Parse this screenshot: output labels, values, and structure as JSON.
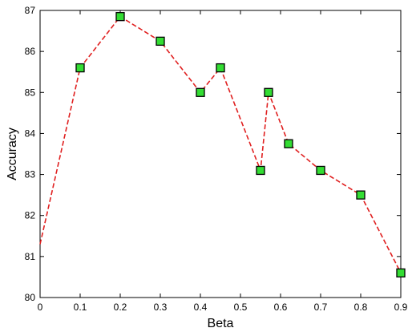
{
  "chart_data": {
    "type": "line",
    "title": "",
    "xlabel": "Beta",
    "ylabel": "Accuracy",
    "xlim": [
      0,
      0.9
    ],
    "ylim": [
      80,
      87
    ],
    "xticks": [
      "0",
      "0.1",
      "0.2",
      "0.3",
      "0.4",
      "0.5",
      "0.6",
      "0.7",
      "0.8",
      "0.9"
    ],
    "yticks": [
      "80",
      "81",
      "82",
      "83",
      "84",
      "85",
      "86",
      "87"
    ],
    "grid": false,
    "series": [
      {
        "color": "#e02020",
        "marker_color": "#33dd33",
        "line_style": "dashed",
        "marker": "square",
        "x": [
          0,
          0.1,
          0.2,
          0.3,
          0.4,
          0.45,
          0.55,
          0.57,
          0.62,
          0.7,
          0.8,
          0.9
        ],
        "y": [
          81.3,
          85.6,
          86.85,
          86.25,
          85.0,
          85.6,
          83.1,
          85.0,
          83.75,
          83.1,
          82.5,
          80.6
        ],
        "markers_from_index": 1
      }
    ]
  }
}
